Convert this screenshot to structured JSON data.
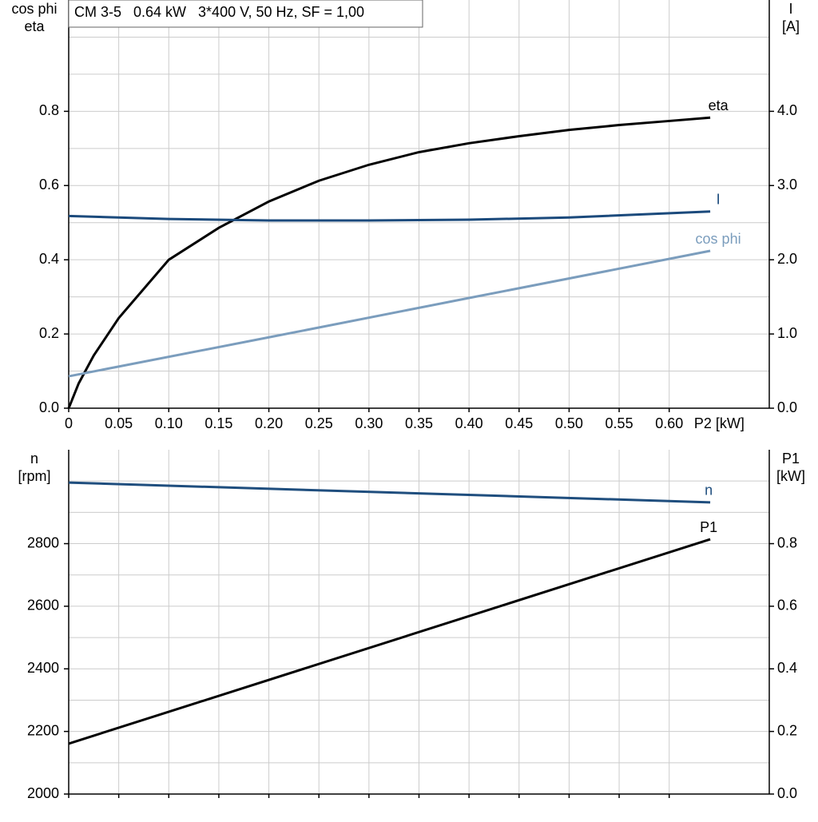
{
  "chart_data": [
    {
      "type": "line",
      "title": "CM 3-5   0.64 kW   3*400 V, 50 Hz, SF = 1,00",
      "x_label": "P2 [kW]",
      "y_label": [
        "cos phi",
        "eta"
      ],
      "y2_label": [
        "I",
        "[A]"
      ],
      "xlim": [
        0,
        0.7
      ],
      "xticks": [
        0,
        0.05,
        {
          "value": 0.1,
          "label": "0.10"
        },
        0.15,
        {
          "value": 0.2,
          "label": "0.20"
        },
        0.25,
        {
          "value": 0.3,
          "label": "0.30"
        },
        0.35,
        {
          "value": 0.4,
          "label": "0.40"
        },
        0.45,
        {
          "value": 0.5,
          "label": "0.50"
        },
        0.55,
        {
          "value": 0.6,
          "label": "0.60"
        }
      ],
      "x_label_at": 0.65,
      "ylim": [
        0,
        1.1
      ],
      "yticks": [
        {
          "value": 0,
          "label": "0.0"
        },
        0.2,
        0.4,
        0.6,
        0.8
      ],
      "y_minor_grid": [
        0.1,
        0.3,
        0.5,
        0.7,
        0.9,
        1.0
      ],
      "y2lim": [
        0,
        5.5
      ],
      "y2ticks": [
        {
          "value": 0,
          "label": "0.0"
        },
        {
          "value": 1,
          "label": "1.0"
        },
        {
          "value": 2,
          "label": "2.0"
        },
        {
          "value": 3,
          "label": "3.0"
        },
        {
          "value": 4,
          "label": "4.0"
        }
      ],
      "grid": true,
      "series": [
        {
          "name": "eta",
          "color": "#000000",
          "x": [
            0,
            0.01,
            0.025,
            0.05,
            0.1,
            0.15,
            0.2,
            0.25,
            0.3,
            0.35,
            0.4,
            0.45,
            0.5,
            0.55,
            0.6,
            0.641
          ],
          "values": [
            0,
            0.067,
            0.142,
            0.243,
            0.4,
            0.486,
            0.557,
            0.613,
            0.656,
            0.69,
            0.714,
            0.733,
            0.75,
            0.763,
            0.774,
            0.783
          ]
        },
        {
          "name": "I",
          "color": "#1b4a7c",
          "axis": "y2",
          "x": [
            0,
            0.1,
            0.2,
            0.3,
            0.4,
            0.5,
            0.641
          ],
          "values": [
            2.59,
            2.55,
            2.53,
            2.53,
            2.54,
            2.57,
            2.65
          ]
        },
        {
          "name": "cos phi",
          "color": "#7b9dbd",
          "x": [
            0,
            0.2,
            0.4,
            0.641
          ],
          "values": [
            0.086,
            0.191,
            0.297,
            0.424
          ]
        }
      ]
    },
    {
      "type": "line",
      "y_label": [
        "n",
        "[rpm]"
      ],
      "y2_label": [
        "P1",
        "[kW]"
      ],
      "xlim": [
        0,
        0.7
      ],
      "ylim": [
        2000,
        3100
      ],
      "yticks": [
        2000,
        2200,
        2400,
        2600,
        2800
      ],
      "y_minor_grid": [
        2100,
        2300,
        2500,
        2700,
        2900,
        3000
      ],
      "y2lim": [
        0,
        1.1
      ],
      "y2ticks": [
        {
          "value": 0,
          "label": "0.0"
        },
        0.2,
        0.4,
        0.6,
        0.8
      ],
      "grid": true,
      "series": [
        {
          "name": "n",
          "color": "#1f4e7e",
          "x": [
            0,
            0.641
          ],
          "values": [
            2995,
            2932
          ]
        },
        {
          "name": "P1",
          "color": "#000000",
          "axis": "y2",
          "x": [
            0,
            0.641
          ],
          "values": [
            0.161,
            0.814
          ]
        }
      ]
    }
  ]
}
